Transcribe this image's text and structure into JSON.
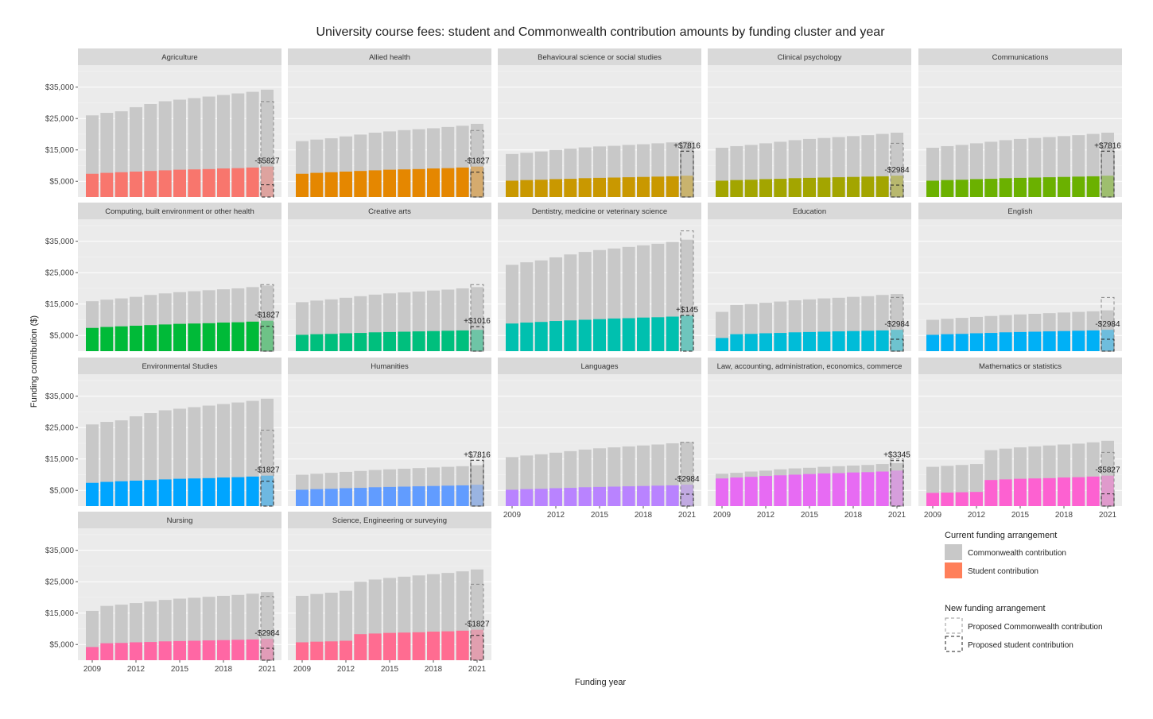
{
  "chart_data": {
    "type": "bar",
    "title": "University course fees: student and Commonwealth contribution amounts by funding cluster and year",
    "xlabel": "Funding year",
    "ylabel": "Funding contribution ($)",
    "ylim": [
      0,
      42000
    ],
    "y_ticks": [
      5000,
      15000,
      25000,
      35000
    ],
    "y_tick_labels": [
      "$5,000",
      "$15,000",
      "$25,000",
      "$35,000"
    ],
    "years": [
      2009,
      2010,
      2011,
      2012,
      2013,
      2014,
      2015,
      2016,
      2017,
      2018,
      2019,
      2020,
      2021
    ],
    "x_tick_labels": [
      "2009",
      "2012",
      "2015",
      "2018",
      "2021"
    ],
    "legend": {
      "current_title": "Current funding arrangement",
      "commonwealth_label": "Commonwealth contribution",
      "student_label": "Student contribution",
      "new_title": "New funding arrangement",
      "proposed_commonwealth_label": "Proposed Commonwealth contribution",
      "proposed_student_label": "Proposed student contribution"
    },
    "colors": {
      "panel_bg": "#ebebeb",
      "strip_bg": "#d9d9d9",
      "commonwealth": "#c8c8c8",
      "grid": "#ffffff"
    },
    "panels": [
      {
        "name": "Agriculture",
        "color": "#f8766d",
        "total": [
          26000,
          26800,
          27300,
          28600,
          29600,
          30500,
          31000,
          31500,
          32000,
          32500,
          33000,
          33500,
          34200
        ],
        "student": [
          7400,
          7700,
          7900,
          8100,
          8300,
          8500,
          8700,
          8800,
          8900,
          9100,
          9200,
          9400,
          9700
        ],
        "proposed_total": 30400,
        "proposed_student": 3900,
        "label": "-$5827"
      },
      {
        "name": "Allied health",
        "color": "#e58700",
        "total": [
          17800,
          18300,
          18700,
          19300,
          19900,
          20500,
          20900,
          21300,
          21600,
          21900,
          22300,
          22700,
          23300
        ],
        "student": [
          7400,
          7700,
          7900,
          8100,
          8300,
          8500,
          8700,
          8800,
          8900,
          9100,
          9200,
          9400,
          9700
        ],
        "proposed_total": 21200,
        "proposed_student": 7900,
        "label": "-$1827"
      },
      {
        "name": "Behavioural science or social studies",
        "color": "#c99800",
        "total": [
          13700,
          14100,
          14500,
          15000,
          15400,
          15800,
          16100,
          16300,
          16600,
          16800,
          17100,
          17400,
          17800
        ],
        "student": [
          5200,
          5400,
          5500,
          5700,
          5800,
          6000,
          6100,
          6200,
          6300,
          6400,
          6500,
          6600,
          6800
        ],
        "proposed_total": 15600,
        "proposed_student": 14600,
        "label": "+$7816"
      },
      {
        "name": "Clinical psychology",
        "color": "#a3a500",
        "total": [
          15700,
          16200,
          16600,
          17100,
          17600,
          18100,
          18500,
          18800,
          19100,
          19400,
          19700,
          20100,
          20500
        ],
        "student": [
          5200,
          5400,
          5500,
          5700,
          5800,
          6000,
          6100,
          6200,
          6300,
          6400,
          6500,
          6600,
          6800
        ],
        "proposed_total": 17100,
        "proposed_student": 3800,
        "label": "-$2984"
      },
      {
        "name": "Communications",
        "color": "#6bb100",
        "total": [
          15700,
          16200,
          16600,
          17100,
          17600,
          18100,
          18500,
          18800,
          19100,
          19400,
          19700,
          20100,
          20500
        ],
        "student": [
          5200,
          5400,
          5500,
          5700,
          5800,
          6000,
          6100,
          6200,
          6300,
          6400,
          6500,
          6600,
          6800
        ],
        "proposed_total": 15600,
        "proposed_student": 14600,
        "label": "+$7816"
      },
      {
        "name": "Computing, built environment or other health",
        "color": "#00ba38",
        "total": [
          15900,
          16400,
          16800,
          17300,
          17900,
          18400,
          18800,
          19100,
          19400,
          19700,
          20000,
          20400,
          20900
        ],
        "student": [
          7400,
          7700,
          7900,
          8100,
          8300,
          8500,
          8700,
          8800,
          8900,
          9100,
          9200,
          9400,
          9700
        ],
        "proposed_total": 21200,
        "proposed_student": 7900,
        "label": "-$1827"
      },
      {
        "name": "Creative arts",
        "color": "#00bf7d",
        "total": [
          15600,
          16100,
          16500,
          17000,
          17500,
          18000,
          18400,
          18700,
          19000,
          19300,
          19600,
          20000,
          20400
        ],
        "student": [
          5200,
          5400,
          5500,
          5700,
          5800,
          6000,
          6100,
          6200,
          6300,
          6400,
          6500,
          6600,
          6800
        ],
        "proposed_total": 21200,
        "proposed_student": 7800,
        "label": "+$1016"
      },
      {
        "name": "Dentistry, medicine or veterinary science",
        "color": "#00c0af",
        "total": [
          27500,
          28300,
          28900,
          29900,
          30800,
          31600,
          32200,
          32700,
          33200,
          33700,
          34200,
          34800,
          35500
        ],
        "student": [
          8800,
          9100,
          9300,
          9600,
          9800,
          10000,
          10200,
          10400,
          10500,
          10700,
          10800,
          11000,
          11300
        ],
        "proposed_total": 38300,
        "proposed_student": 11400,
        "label": "+$145"
      },
      {
        "name": "Education",
        "color": "#00bcd8",
        "total": [
          12500,
          14700,
          15000,
          15400,
          15800,
          16200,
          16500,
          16800,
          17000,
          17300,
          17500,
          17900,
          18200
        ],
        "student": [
          4200,
          5400,
          5500,
          5700,
          5800,
          6000,
          6100,
          6200,
          6300,
          6400,
          6500,
          6600,
          6800
        ],
        "proposed_total": 17100,
        "proposed_student": 3800,
        "label": "-$2984"
      },
      {
        "name": "English",
        "color": "#00b0f6",
        "total": [
          10000,
          10300,
          10600,
          10900,
          11200,
          11500,
          11700,
          11900,
          12100,
          12300,
          12500,
          12700,
          13000
        ],
        "student": [
          5200,
          5400,
          5500,
          5700,
          5800,
          6000,
          6100,
          6200,
          6300,
          6400,
          6500,
          6600,
          6800
        ],
        "proposed_total": 17100,
        "proposed_student": 3800,
        "label": "-$2984"
      },
      {
        "name": "Environmental Studies",
        "color": "#00a5ff",
        "total": [
          26000,
          26800,
          27300,
          28600,
          29600,
          30500,
          31000,
          31500,
          32000,
          32500,
          33000,
          33500,
          34200
        ],
        "student": [
          7400,
          7700,
          7900,
          8100,
          8300,
          8500,
          8700,
          8800,
          8900,
          9100,
          9200,
          9400,
          9700
        ],
        "proposed_total": 24200,
        "proposed_student": 7900,
        "label": "-$1827"
      },
      {
        "name": "Humanities",
        "color": "#619cff",
        "total": [
          10000,
          10300,
          10600,
          10900,
          11200,
          11500,
          11700,
          11900,
          12100,
          12300,
          12500,
          12700,
          13000
        ],
        "student": [
          5200,
          5400,
          5500,
          5700,
          5800,
          6000,
          6100,
          6200,
          6300,
          6400,
          6500,
          6600,
          6800
        ],
        "proposed_total": 15600,
        "proposed_student": 14600,
        "label": "+$7816"
      },
      {
        "name": "Languages",
        "color": "#b983ff",
        "total": [
          15600,
          16100,
          16500,
          17000,
          17500,
          18000,
          18400,
          18700,
          19000,
          19300,
          19600,
          20000,
          20400
        ],
        "student": [
          5200,
          5400,
          5500,
          5700,
          5800,
          6000,
          6100,
          6200,
          6300,
          6400,
          6500,
          6600,
          6800
        ],
        "proposed_total": 20300,
        "proposed_student": 3800,
        "label": "-$2984"
      },
      {
        "name": "Law, accounting, administration, economics, commerce",
        "color": "#e76bf3",
        "total": [
          10300,
          10600,
          11000,
          11300,
          11700,
          12000,
          12200,
          12500,
          12700,
          12900,
          13100,
          13400,
          13700
        ],
        "student": [
          8800,
          9100,
          9300,
          9600,
          9800,
          10000,
          10200,
          10400,
          10500,
          10700,
          10800,
          11000,
          11300
        ],
        "proposed_total": 15000,
        "proposed_student": 14500,
        "label": "+$3345"
      },
      {
        "name": "Mathematics or statistics",
        "color": "#fd61d1",
        "total": [
          12500,
          12800,
          13100,
          13400,
          17800,
          18300,
          18700,
          19000,
          19300,
          19600,
          19900,
          20300,
          20800
        ],
        "student": [
          4200,
          4300,
          4400,
          4500,
          8300,
          8500,
          8700,
          8800,
          8900,
          9100,
          9200,
          9400,
          9700
        ],
        "proposed_total": 17100,
        "proposed_student": 3900,
        "label": "-$5827"
      },
      {
        "name": "Nursing",
        "color": "#ff67a4",
        "total": [
          15700,
          17300,
          17700,
          18200,
          18700,
          19200,
          19600,
          19900,
          20200,
          20500,
          20800,
          21200,
          21700
        ],
        "student": [
          4200,
          5400,
          5500,
          5700,
          5800,
          6000,
          6100,
          6200,
          6300,
          6400,
          6500,
          6600,
          6800
        ],
        "proposed_total": 20300,
        "proposed_student": 3800,
        "label": "-$2984"
      },
      {
        "name": "Science, Engineering or surveying",
        "color": "#ff6c91",
        "total": [
          20500,
          21100,
          21500,
          22100,
          25000,
          25700,
          26200,
          26600,
          27000,
          27400,
          27800,
          28300,
          28900
        ],
        "student": [
          5700,
          5900,
          6000,
          6200,
          8300,
          8500,
          8700,
          8800,
          8900,
          9100,
          9200,
          9400,
          9700
        ],
        "proposed_total": 24200,
        "proposed_student": 7900,
        "label": "-$1827"
      }
    ]
  }
}
